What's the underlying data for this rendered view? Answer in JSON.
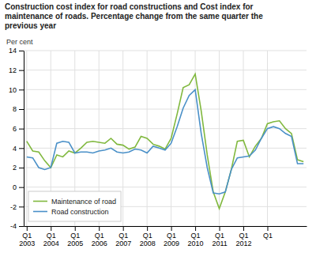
{
  "chart_data": {
    "type": "line",
    "title": "Construction cost index for road constructions and Cost index for\nmaintenance of roads. Percentage change from the same quarter the\nprevious year",
    "ylabel": "Per cent",
    "categories": [
      "Q1\n2003",
      null,
      null,
      null,
      "Q1\n2004",
      null,
      null,
      null,
      "Q1\n2005",
      null,
      null,
      null,
      "Q1\n2006",
      null,
      null,
      null,
      "Q1\n2007",
      null,
      null,
      null,
      "Q1\n2008",
      null,
      null,
      null,
      "Q1\n2009",
      null,
      null,
      null,
      "Q1\n2010",
      null,
      null,
      null,
      "Q1\n2011",
      null,
      null,
      null,
      "Q1\n2012",
      null,
      null,
      null,
      "Q1\n ",
      null,
      null,
      null,
      null,
      null,
      null
    ],
    "series": [
      {
        "name": "Maintenance of road",
        "color": "#80b83e",
        "values": [
          4.7,
          3.7,
          3.6,
          2.7,
          2.0,
          3.3,
          3.1,
          3.7,
          3.5,
          4.0,
          4.6,
          4.7,
          4.6,
          4.5,
          5.0,
          4.4,
          4.3,
          3.9,
          4.1,
          5.2,
          5.0,
          4.4,
          4.2,
          3.9,
          5.0,
          7.5,
          10.2,
          10.5,
          11.6,
          7.8,
          3.3,
          -0.5,
          -2.2,
          -0.5,
          1.8,
          4.7,
          4.8,
          3.1,
          4.2,
          5.0,
          6.5,
          6.7,
          6.8,
          6.0,
          5.5,
          2.8,
          2.6
        ]
      },
      {
        "name": "Road construction",
        "color": "#4a90c8",
        "values": [
          3.1,
          3.0,
          2.0,
          1.8,
          2.0,
          4.5,
          4.7,
          4.6,
          3.5,
          3.6,
          3.6,
          3.5,
          3.7,
          3.8,
          4.0,
          3.6,
          3.5,
          3.6,
          3.9,
          3.8,
          3.5,
          4.2,
          4.0,
          3.8,
          4.5,
          6.2,
          8.1,
          9.4,
          10.0,
          5.5,
          2.0,
          -0.6,
          -0.7,
          -0.5,
          1.8,
          3.0,
          3.1,
          3.2,
          3.8,
          5.0,
          6.0,
          6.2,
          6.0,
          5.5,
          5.2,
          2.4,
          2.4
        ]
      }
    ],
    "ylim": [
      -4,
      14
    ],
    "yticks": [
      -4,
      -2,
      0,
      2,
      4,
      6,
      8,
      10,
      12,
      14
    ],
    "grid": true,
    "legend": "lower left"
  }
}
